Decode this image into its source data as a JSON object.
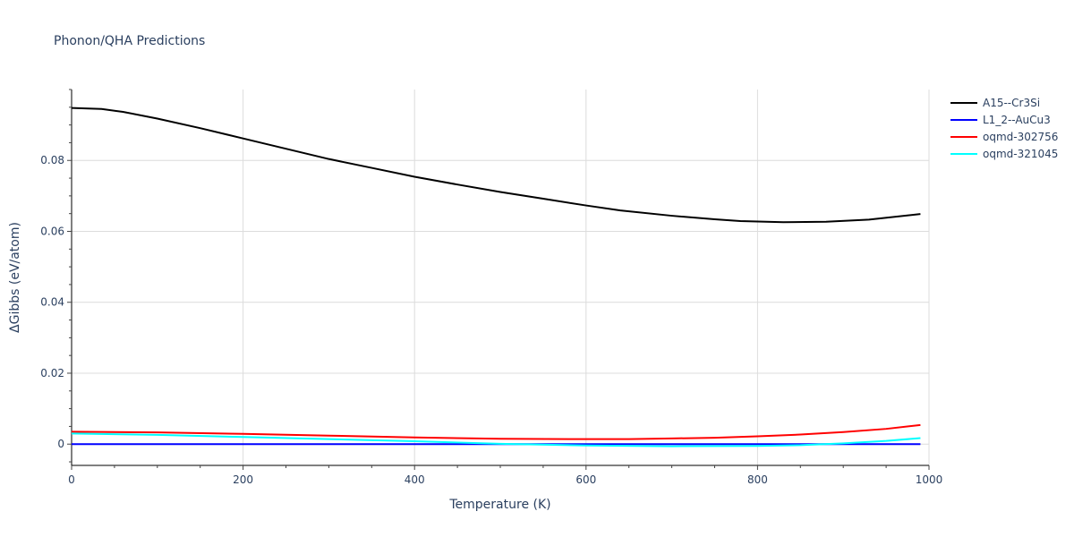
{
  "chart_data": {
    "type": "line",
    "title": "Phonon/QHA Predictions",
    "xlabel": "Temperature (K)",
    "ylabel": "ΔGibbs (eV/atom)",
    "xlim": [
      0,
      1000
    ],
    "ylim": [
      -0.006,
      0.1
    ],
    "xticks": [
      0,
      200,
      400,
      600,
      800,
      1000
    ],
    "yticks": [
      0,
      0.02,
      0.04,
      0.06,
      0.08
    ],
    "xtick_labels": [
      "0",
      "200",
      "400",
      "600",
      "800",
      "1000"
    ],
    "ytick_labels": [
      "0",
      "0.02",
      "0.04",
      "0.06",
      "0.08"
    ],
    "grid": true,
    "legend_position": "top-right",
    "series": [
      {
        "name": "A15--Cr3Si",
        "color": "#000000",
        "x": [
          0,
          35,
          60,
          100,
          150,
          200,
          250,
          300,
          350,
          400,
          450,
          500,
          550,
          600,
          640,
          700,
          750,
          780,
          830,
          880,
          930,
          990
        ],
        "y": [
          0.0948,
          0.0945,
          0.0937,
          0.0918,
          0.0891,
          0.0862,
          0.0833,
          0.0804,
          0.0779,
          0.0754,
          0.0732,
          0.0711,
          0.0692,
          0.0673,
          0.0659,
          0.0644,
          0.0634,
          0.0629,
          0.0626,
          0.0627,
          0.0633,
          0.0649
        ]
      },
      {
        "name": "L1_2--AuCu3",
        "color": "#0000ff",
        "x": [
          0,
          200,
          400,
          600,
          800,
          990
        ],
        "y": [
          0,
          0,
          0,
          0,
          0,
          0
        ]
      },
      {
        "name": "oqmd-302756",
        "color": "#ff0000",
        "x": [
          0,
          100,
          200,
          300,
          400,
          500,
          600,
          650,
          700,
          750,
          800,
          850,
          900,
          950,
          990
        ],
        "y": [
          0.0035,
          0.0033,
          0.0029,
          0.0024,
          0.0019,
          0.0015,
          0.0014,
          0.0014,
          0.0016,
          0.0018,
          0.0022,
          0.0027,
          0.0034,
          0.0043,
          0.0054
        ]
      },
      {
        "name": "oqmd-321045",
        "color": "#00ffff",
        "x": [
          0,
          100,
          200,
          300,
          400,
          500,
          600,
          700,
          800,
          850,
          900,
          950,
          990
        ],
        "y": [
          0.003,
          0.0026,
          0.002,
          0.0014,
          0.0008,
          0.0001,
          -0.0004,
          -0.0006,
          -0.0005,
          -0.0003,
          0.0002,
          0.0009,
          0.0017
        ]
      }
    ]
  }
}
